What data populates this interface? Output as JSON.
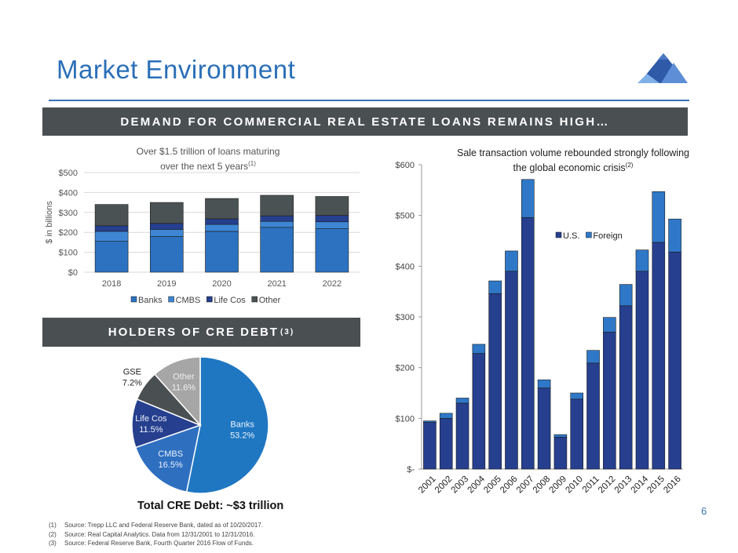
{
  "page": {
    "title": "Market Environment",
    "banner_main": "DEMAND FOR COMMERCIAL REAL ESTATE LOANS REMAINS HIGH…",
    "banner_holders": "HOLDERS OF CRE DEBT",
    "banner_holders_sup": "(3)",
    "total_debt": "Total CRE Debt: ~$3 trillion",
    "page_number": "6",
    "colors": {
      "title": "#2b6fb8",
      "banner": "#4a4f52",
      "dark_blue": "#263f8e",
      "mid_blue": "#2c72c1",
      "gray": "#4b5253"
    }
  },
  "footnotes": [
    {
      "num": "(1)",
      "text": "Source: Trepp LLC and Federal Reserve Bank, dated as of 10/20/2017."
    },
    {
      "num": "(2)",
      "text": "Source: Real Capital Analytics. Data from 12/31/2001 to 12/31/2016."
    },
    {
      "num": "(3)",
      "text": "Source: Federal Reserve Bank, Fourth Quarter 2016 Flow of Funds."
    }
  ],
  "chart_data": [
    {
      "id": "loans-maturing",
      "type": "bar",
      "stacked": true,
      "title_line1": "Over $1.5 trillion of loans maturing",
      "title_line2": "over the next 5 years",
      "title_sup": "(1)",
      "ylabel": "$ in billions",
      "ylim": [
        0,
        500
      ],
      "yticks": [
        0,
        100,
        200,
        300,
        400,
        500
      ],
      "ytick_labels": [
        "$0",
        "$100",
        "$200",
        "$300",
        "$400",
        "$500"
      ],
      "categories": [
        "2018",
        "2019",
        "2020",
        "2021",
        "2022"
      ],
      "series": [
        {
          "name": "Banks",
          "color": "#2c72c1",
          "values": [
            155,
            180,
            205,
            225,
            218
          ]
        },
        {
          "name": "CMBS",
          "color": "#3e86d4",
          "values": [
            50,
            35,
            35,
            30,
            35
          ]
        },
        {
          "name": "Life Cos",
          "color": "#263f8e",
          "values": [
            28,
            30,
            28,
            28,
            32
          ]
        },
        {
          "name": "Other",
          "color": "#4b5253",
          "values": [
            107,
            105,
            102,
            103,
            95
          ]
        }
      ],
      "legend": "bottom"
    },
    {
      "id": "sale-transactions",
      "type": "bar",
      "stacked": true,
      "title_line1": "Sale transaction volume rebounded strongly following",
      "title_line2": "the global economic crisis",
      "title_sup": "(2)",
      "ylim": [
        0,
        600
      ],
      "yticks": [
        0,
        100,
        200,
        300,
        400,
        500,
        600
      ],
      "ytick_labels": [
        "$-",
        "$100",
        "$200",
        "$300",
        "$400",
        "$500",
        "$600"
      ],
      "categories": [
        "2001",
        "2002",
        "2003",
        "2004",
        "2005",
        "2006",
        "2007",
        "2008",
        "2009",
        "2010",
        "2011",
        "2012",
        "2013",
        "2014",
        "2015",
        "2016"
      ],
      "series": [
        {
          "name": "U.S.",
          "color": "#263f8e",
          "values": [
            92,
            100,
            130,
            228,
            346,
            390,
            496,
            160,
            63,
            138,
            209,
            270,
            322,
            390,
            447,
            428
          ]
        },
        {
          "name": "Foreign",
          "color": "#2f78c8",
          "values": [
            3,
            10,
            10,
            18,
            25,
            40,
            75,
            16,
            5,
            12,
            25,
            29,
            42,
            42,
            100,
            65
          ]
        }
      ],
      "legend": "top-right"
    },
    {
      "id": "cre-debt-holders",
      "type": "pie",
      "slices": [
        {
          "name": "Banks",
          "value": 53.2,
          "label": "53.2%",
          "color": "#1f77c2"
        },
        {
          "name": "CMBS",
          "value": 16.5,
          "label": "16.5%",
          "color": "#2e6fc0"
        },
        {
          "name": "Life Cos",
          "value": 11.5,
          "label": "11.5%",
          "color": "#263f8e"
        },
        {
          "name": "GSE",
          "value": 7.2,
          "label": "7.2%",
          "color": "#4a4f52"
        },
        {
          "name": "Other",
          "value": 11.6,
          "label": "11.6%",
          "color": "#a6a6a6"
        }
      ]
    }
  ]
}
